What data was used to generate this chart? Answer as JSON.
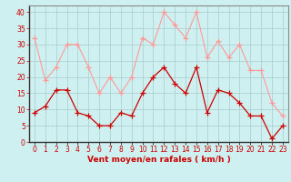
{
  "x": [
    0,
    1,
    2,
    3,
    4,
    5,
    6,
    7,
    8,
    9,
    10,
    11,
    12,
    13,
    14,
    15,
    16,
    17,
    18,
    19,
    20,
    21,
    22,
    23
  ],
  "rafales": [
    32,
    19,
    23,
    30,
    30,
    23,
    15,
    20,
    15,
    20,
    32,
    30,
    40,
    36,
    32,
    40,
    26,
    31,
    26,
    30,
    22,
    22,
    12,
    8
  ],
  "moyen": [
    9,
    11,
    16,
    16,
    9,
    8,
    5,
    5,
    9,
    8,
    15,
    20,
    23,
    18,
    15,
    23,
    9,
    16,
    15,
    12,
    8,
    8,
    1,
    5
  ],
  "bg_color": "#cff0f0",
  "grid_color": "#aacccc",
  "line_rafales_color": "#ff9999",
  "line_moyen_color": "#cc0000",
  "xlabel": "Vent moyen/en rafales ( km/h )",
  "xlabel_color": "#cc0000",
  "tick_color": "#cc0000",
  "spine_color": "#888888",
  "ylim": [
    0,
    42
  ],
  "yticks": [
    0,
    5,
    10,
    15,
    20,
    25,
    30,
    35,
    40
  ],
  "label_fontsize": 6.5,
  "tick_fontsize": 5.5
}
